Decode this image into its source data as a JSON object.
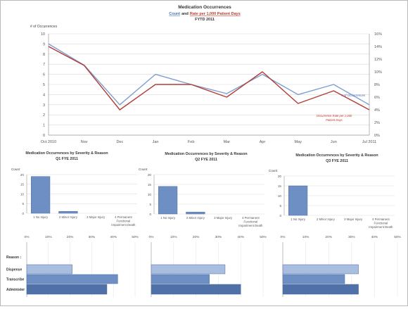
{
  "chart_data": [
    {
      "type": "line",
      "title": "Medication Occurrences",
      "subtitle_count": "Count",
      "subtitle_and": "and",
      "subtitle_rate": "Rate per 1,000 Patient Days",
      "subtitle_period": "FYTD 2011",
      "ylabel": "# of Occurrences",
      "categories": [
        "Oct 2010",
        "Nov",
        "Dec",
        "Jan",
        "Feb",
        "Mar",
        "Apr",
        "May",
        "Jun",
        "Jul 2011"
      ],
      "ylim": [
        0,
        10
      ],
      "y2lim": [
        0,
        16
      ],
      "yticks": [
        "0",
        "1",
        "2",
        "3",
        "4",
        "5",
        "6",
        "7",
        "8",
        "9",
        "10"
      ],
      "y2ticks": [
        "0%",
        "2%",
        "4%",
        "6%",
        "8%",
        "10%",
        "12%",
        "14%",
        "16%"
      ],
      "grid": true,
      "series": [
        {
          "name": "# of Occurrences",
          "axis": "left",
          "color": "#7f9fcf",
          "values": [
            9.0,
            6.9,
            3.0,
            6.0,
            5.0,
            4.1,
            6.0,
            4.0,
            5.0,
            3.0
          ]
        },
        {
          "name": "Occurrence Rate per 1,000 Patient Days",
          "axis": "right",
          "color": "#b23c36",
          "values": [
            14.0,
            11.0,
            4.0,
            8.0,
            8.0,
            6.0,
            10.0,
            5.0,
            7.0,
            4.0
          ]
        }
      ],
      "colors": {
        "count": "#4472c4",
        "rate": "#c0392b"
      }
    },
    {
      "type": "bar",
      "title": "Medication Occurrences by Severity & Reason",
      "subtitle": "Q1 FYE 2011",
      "ylabel": "Count",
      "categories": [
        "1 No Injury",
        "2 Minor Injury",
        "3 Major Injury",
        "4 Permanent Functional Impairment Death"
      ],
      "values": [
        19,
        1,
        0,
        0
      ],
      "ylim": [
        0,
        20
      ],
      "yticks": [
        "0",
        "5",
        "10",
        "15",
        "20"
      ],
      "color": "#6e8fc4"
    },
    {
      "type": "bar",
      "title": "Medication Occurrences by Severity & Reason",
      "subtitle": "Q2 FYE 2011",
      "ylabel": "Count",
      "categories": [
        "1 No Injury",
        "2 Minor Injury",
        "3 Major Injury",
        "4 Permanent Functional Impairment Death"
      ],
      "values": [
        14,
        1,
        0,
        0
      ],
      "ylim": [
        0,
        20
      ],
      "yticks": [
        "0",
        "5",
        "10",
        "15",
        "20"
      ],
      "color": "#6e8fc4"
    },
    {
      "type": "bar",
      "title": "Medication Occurrences by Severity & Reason",
      "subtitle": "Q3 FYE 2011",
      "ylabel": "Count",
      "categories": [
        "1 No Injury",
        "2 Minor Injury",
        "3 Major Injury",
        "4 Permanent Functional Impairment Death"
      ],
      "values": [
        15,
        0,
        0,
        0
      ],
      "ylim": [
        0,
        20
      ],
      "yticks": [
        "0",
        "5",
        "10",
        "15",
        "20"
      ],
      "color": "#6e8fc4"
    },
    {
      "type": "bar",
      "orientation": "horizontal",
      "label": "Reason :",
      "categories": [
        "Dispense",
        "Transcribe",
        "Administer"
      ],
      "series": [
        {
          "values": [
            21,
            42,
            37
          ]
        },
        {
          "values": [
            33,
            26,
            40
          ]
        },
        {
          "values": [
            33,
            27,
            33
          ]
        }
      ],
      "xlim": [
        0,
        50
      ],
      "xticks": [
        "0%",
        "10%",
        "20%",
        "30%",
        "40%",
        "50%"
      ],
      "colors": [
        "#a9bde0",
        "#6e8fc4",
        "#4f71a8"
      ]
    }
  ]
}
